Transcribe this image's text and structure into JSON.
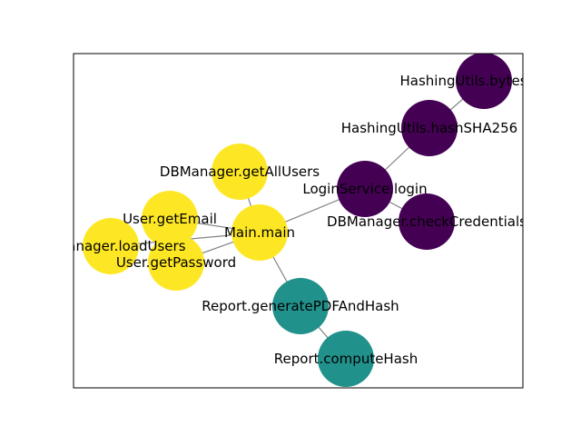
{
  "diagram": {
    "type": "graph",
    "colors": {
      "yellow": "#fde725",
      "teal": "#21918c",
      "purple": "#440154",
      "edge": "#808080"
    },
    "nodes": [
      {
        "id": "main",
        "label": "Main.main",
        "group": "yellow"
      },
      {
        "id": "getAllUsers",
        "label": "DBManager.getAllUsers",
        "group": "yellow"
      },
      {
        "id": "getEmail",
        "label": "User.getEmail",
        "group": "yellow"
      },
      {
        "id": "loadUsers",
        "label": "DBManager.loadUsers",
        "group": "yellow"
      },
      {
        "id": "getPassword",
        "label": "User.getPassword",
        "group": "yellow"
      },
      {
        "id": "login",
        "label": "LoginService.login",
        "group": "purple"
      },
      {
        "id": "checkCredentials",
        "label": "DBManager.checkCredentials",
        "group": "purple"
      },
      {
        "id": "hashSHA256",
        "label": "HashingUtils.hashSHA256",
        "group": "purple"
      },
      {
        "id": "bytesToHex",
        "label": "HashingUtils.bytesToHex",
        "group": "purple"
      },
      {
        "id": "generatePDFAndHash",
        "label": "Report.generatePDFAndHash",
        "group": "teal"
      },
      {
        "id": "computeHash",
        "label": "Report.computeHash",
        "group": "teal"
      }
    ],
    "edges": [
      [
        "main",
        "getAllUsers"
      ],
      [
        "main",
        "getEmail"
      ],
      [
        "main",
        "loadUsers"
      ],
      [
        "main",
        "getPassword"
      ],
      [
        "main",
        "login"
      ],
      [
        "main",
        "generatePDFAndHash"
      ],
      [
        "login",
        "checkCredentials"
      ],
      [
        "login",
        "hashSHA256"
      ],
      [
        "hashSHA256",
        "bytesToHex"
      ],
      [
        "generatePDFAndHash",
        "computeHash"
      ]
    ]
  }
}
